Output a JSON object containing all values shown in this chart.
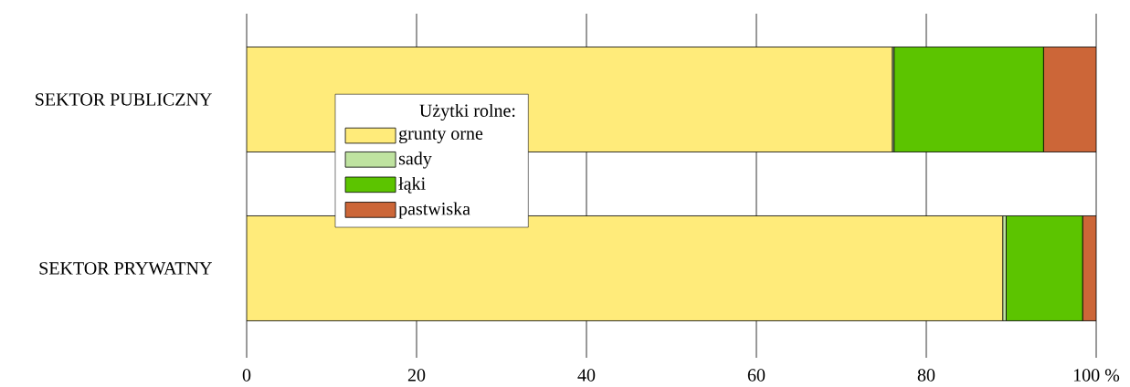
{
  "chart_data": {
    "type": "bar",
    "orientation": "horizontal",
    "stacked": true,
    "categories": [
      "SEKTOR PUBLICZNY",
      "SEKTOR PRYWATNY"
    ],
    "series": [
      {
        "name": "grunty orne",
        "color": "#ffeb7a",
        "values": [
          76.0,
          89.0
        ]
      },
      {
        "name": "sady",
        "color": "#bfe3a0",
        "values": [
          0.2,
          0.4
        ]
      },
      {
        "name": "łąki",
        "color": "#5cc400",
        "values": [
          17.6,
          9.0
        ]
      },
      {
        "name": "pastwiska",
        "color": "#cc6638",
        "values": [
          6.2,
          1.6
        ]
      }
    ],
    "legend_title": "Użytki rolne:",
    "legend": "left",
    "grid": "x",
    "xlim": [
      0,
      100
    ],
    "xticks": [
      0,
      20,
      40,
      60,
      80,
      {
        "value": 100,
        "label": "100 %"
      }
    ]
  }
}
